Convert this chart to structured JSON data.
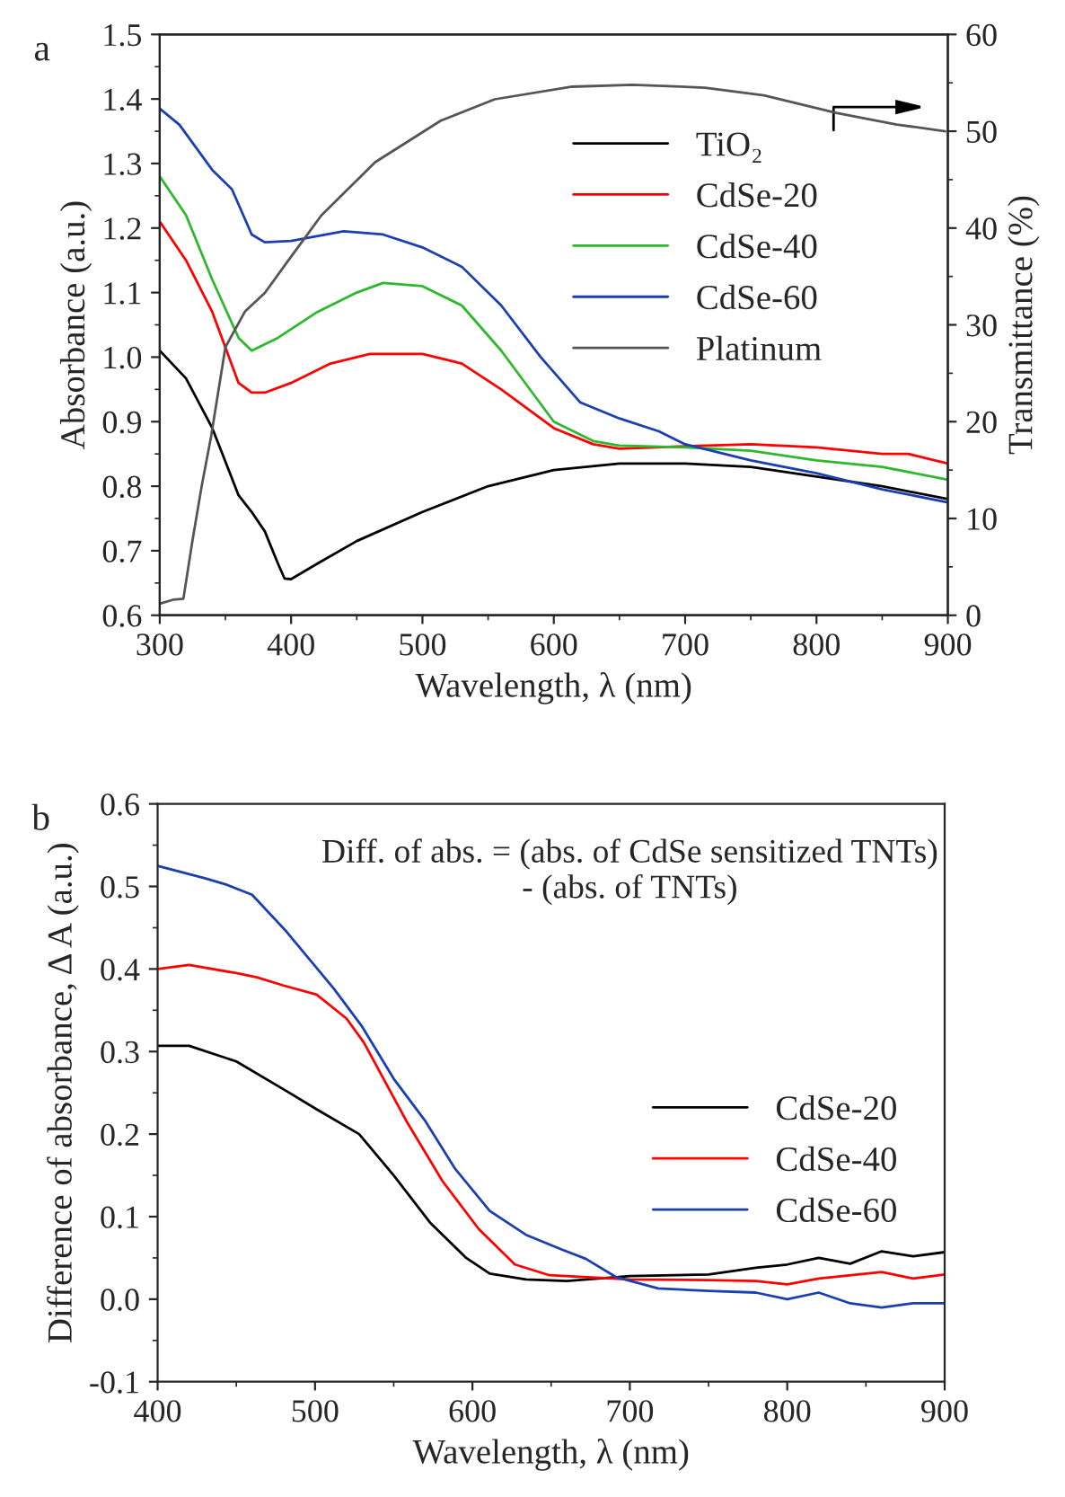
{
  "chart_data": [
    {
      "type": "line",
      "xlabel": "Wavelength, λ (nm)",
      "ylabel": "Absorbance (a.u.)",
      "y2label": "Transmittance (%)",
      "annotations": [
        "a"
      ],
      "legend": "right",
      "xlim": [
        300,
        900
      ],
      "xticks": [
        300,
        400,
        500,
        600,
        700,
        800,
        900
      ],
      "ylim": [
        0.6,
        1.5
      ],
      "yticks": [
        0.6,
        0.7,
        0.8,
        0.9,
        {
          "value": 1,
          "label": "1.0"
        },
        1.1,
        1.2,
        1.3,
        1.4,
        1.5
      ],
      "y2lim": [
        0,
        60
      ],
      "y2ticks": [
        0,
        10,
        20,
        30,
        40,
        50,
        60
      ],
      "series": [
        {
          "name": "TiO₂",
          "color": "#000000",
          "x": [
            300,
            320,
            340,
            360,
            370,
            380,
            390,
            395,
            400,
            420,
            450,
            500,
            550,
            600,
            650,
            700,
            750,
            800,
            850,
            900
          ],
          "values": [
            1.01,
            0.967,
            0.89,
            0.786,
            0.76,
            0.73,
            0.68,
            0.657,
            0.656,
            0.68,
            0.715,
            0.76,
            0.8,
            0.825,
            0.835,
            0.835,
            0.83,
            0.815,
            0.8,
            0.78
          ]
        },
        {
          "name": "CdSe-20",
          "color": "#ff0000",
          "x": [
            300,
            320,
            340,
            360,
            370,
            380,
            400,
            430,
            460,
            500,
            530,
            560,
            600,
            630,
            650,
            700,
            750,
            800,
            850,
            870,
            900
          ],
          "values": [
            1.21,
            1.15,
            1.07,
            0.96,
            0.945,
            0.945,
            0.96,
            0.99,
            1.005,
            1.005,
            0.99,
            0.95,
            0.89,
            0.865,
            0.858,
            0.862,
            0.865,
            0.86,
            0.85,
            0.85,
            0.835
          ]
        },
        {
          "name": "CdSe-40",
          "color": "#2eb82e",
          "x": [
            300,
            320,
            340,
            360,
            370,
            390,
            420,
            450,
            470,
            500,
            530,
            560,
            600,
            630,
            650,
            700,
            750,
            800,
            850,
            900
          ],
          "values": [
            1.28,
            1.22,
            1.12,
            1.03,
            1.01,
            1.03,
            1.07,
            1.1,
            1.115,
            1.11,
            1.08,
            1.01,
            0.9,
            0.87,
            0.863,
            0.86,
            0.855,
            0.84,
            0.83,
            0.81
          ]
        },
        {
          "name": "CdSe-60",
          "color": "#1a3fb0",
          "x": [
            300,
            315,
            340,
            355,
            370,
            380,
            400,
            440,
            470,
            500,
            530,
            560,
            590,
            620,
            650,
            680,
            700,
            750,
            800,
            850,
            900
          ],
          "values": [
            1.385,
            1.36,
            1.29,
            1.26,
            1.19,
            1.178,
            1.18,
            1.195,
            1.19,
            1.17,
            1.14,
            1.08,
            1.0,
            0.93,
            0.905,
            0.885,
            0.865,
            0.84,
            0.82,
            0.795,
            0.775
          ]
        },
        {
          "name": "Platinum",
          "color": "#555555",
          "axis": "y2",
          "x": [
            300,
            310,
            318,
            325,
            332,
            339,
            350,
            365,
            380,
            396,
            423,
            464,
            514,
            555,
            614,
            660,
            715,
            760,
            815,
            861,
            898
          ],
          "values": [
            1.2,
            1.6,
            1.7,
            7.8,
            13.4,
            18.4,
            27.7,
            31.4,
            33.3,
            36.3,
            41.3,
            46.8,
            51.1,
            53.3,
            54.6,
            54.8,
            54.5,
            53.7,
            51.9,
            50.7,
            50.0
          ]
        }
      ]
    },
    {
      "type": "line",
      "xlabel": "Wavelength, λ (nm)",
      "ylabel": "Difference of absorbance, Δ A (a.u.)",
      "annotations": [
        "b",
        "Diff. of abs. = (abs. of CdSe sensitized TNTs)\n- (abs. of TNTs)"
      ],
      "legend": "right",
      "xlim": [
        400,
        900
      ],
      "xticks": [
        400,
        500,
        600,
        700,
        800,
        900
      ],
      "ylim": [
        -0.1,
        0.6
      ],
      "yticks": [
        -0.1,
        {
          "value": 0,
          "label": "0.0"
        },
        0.1,
        0.2,
        0.3,
        0.4,
        0.5,
        0.6
      ],
      "series": [
        {
          "name": "CdSe-20",
          "color": "#000000",
          "x": [
            400,
            420,
            450,
            482,
            501,
            528,
            550,
            573,
            596,
            611,
            634,
            660,
            700,
            750,
            780,
            800,
            820,
            840,
            860,
            880,
            900
          ],
          "values": [
            0.307,
            0.307,
            0.288,
            0.252,
            0.23,
            0.2,
            0.15,
            0.093,
            0.05,
            0.031,
            0.024,
            0.022,
            0.028,
            0.03,
            0.038,
            0.042,
            0.05,
            0.043,
            0.058,
            0.052,
            0.057
          ]
        },
        {
          "name": "CdSe-40",
          "color": "#ff0000",
          "x": [
            400,
            420,
            450,
            463,
            480,
            501,
            520,
            531,
            558,
            581,
            604,
            627,
            649,
            700,
            750,
            780,
            800,
            820,
            860,
            880,
            900
          ],
          "values": [
            0.4,
            0.405,
            0.395,
            0.39,
            0.38,
            0.369,
            0.34,
            0.311,
            0.216,
            0.143,
            0.085,
            0.042,
            0.029,
            0.024,
            0.023,
            0.022,
            0.018,
            0.025,
            0.033,
            0.025,
            0.03
          ]
        },
        {
          "name": "CdSe-60",
          "color": "#1a3fb0",
          "x": [
            400,
            430,
            444,
            460,
            482,
            512,
            530,
            550,
            570,
            589,
            611,
            634,
            657,
            672,
            691,
            718,
            750,
            780,
            800,
            820,
            840,
            860,
            880,
            900
          ],
          "values": [
            0.525,
            0.51,
            0.502,
            0.49,
            0.445,
            0.376,
            0.33,
            0.267,
            0.216,
            0.158,
            0.107,
            0.078,
            0.06,
            0.049,
            0.027,
            0.013,
            0.01,
            0.008,
            0.0,
            0.008,
            -0.005,
            -0.01,
            -0.005,
            -0.005
          ]
        }
      ]
    }
  ]
}
